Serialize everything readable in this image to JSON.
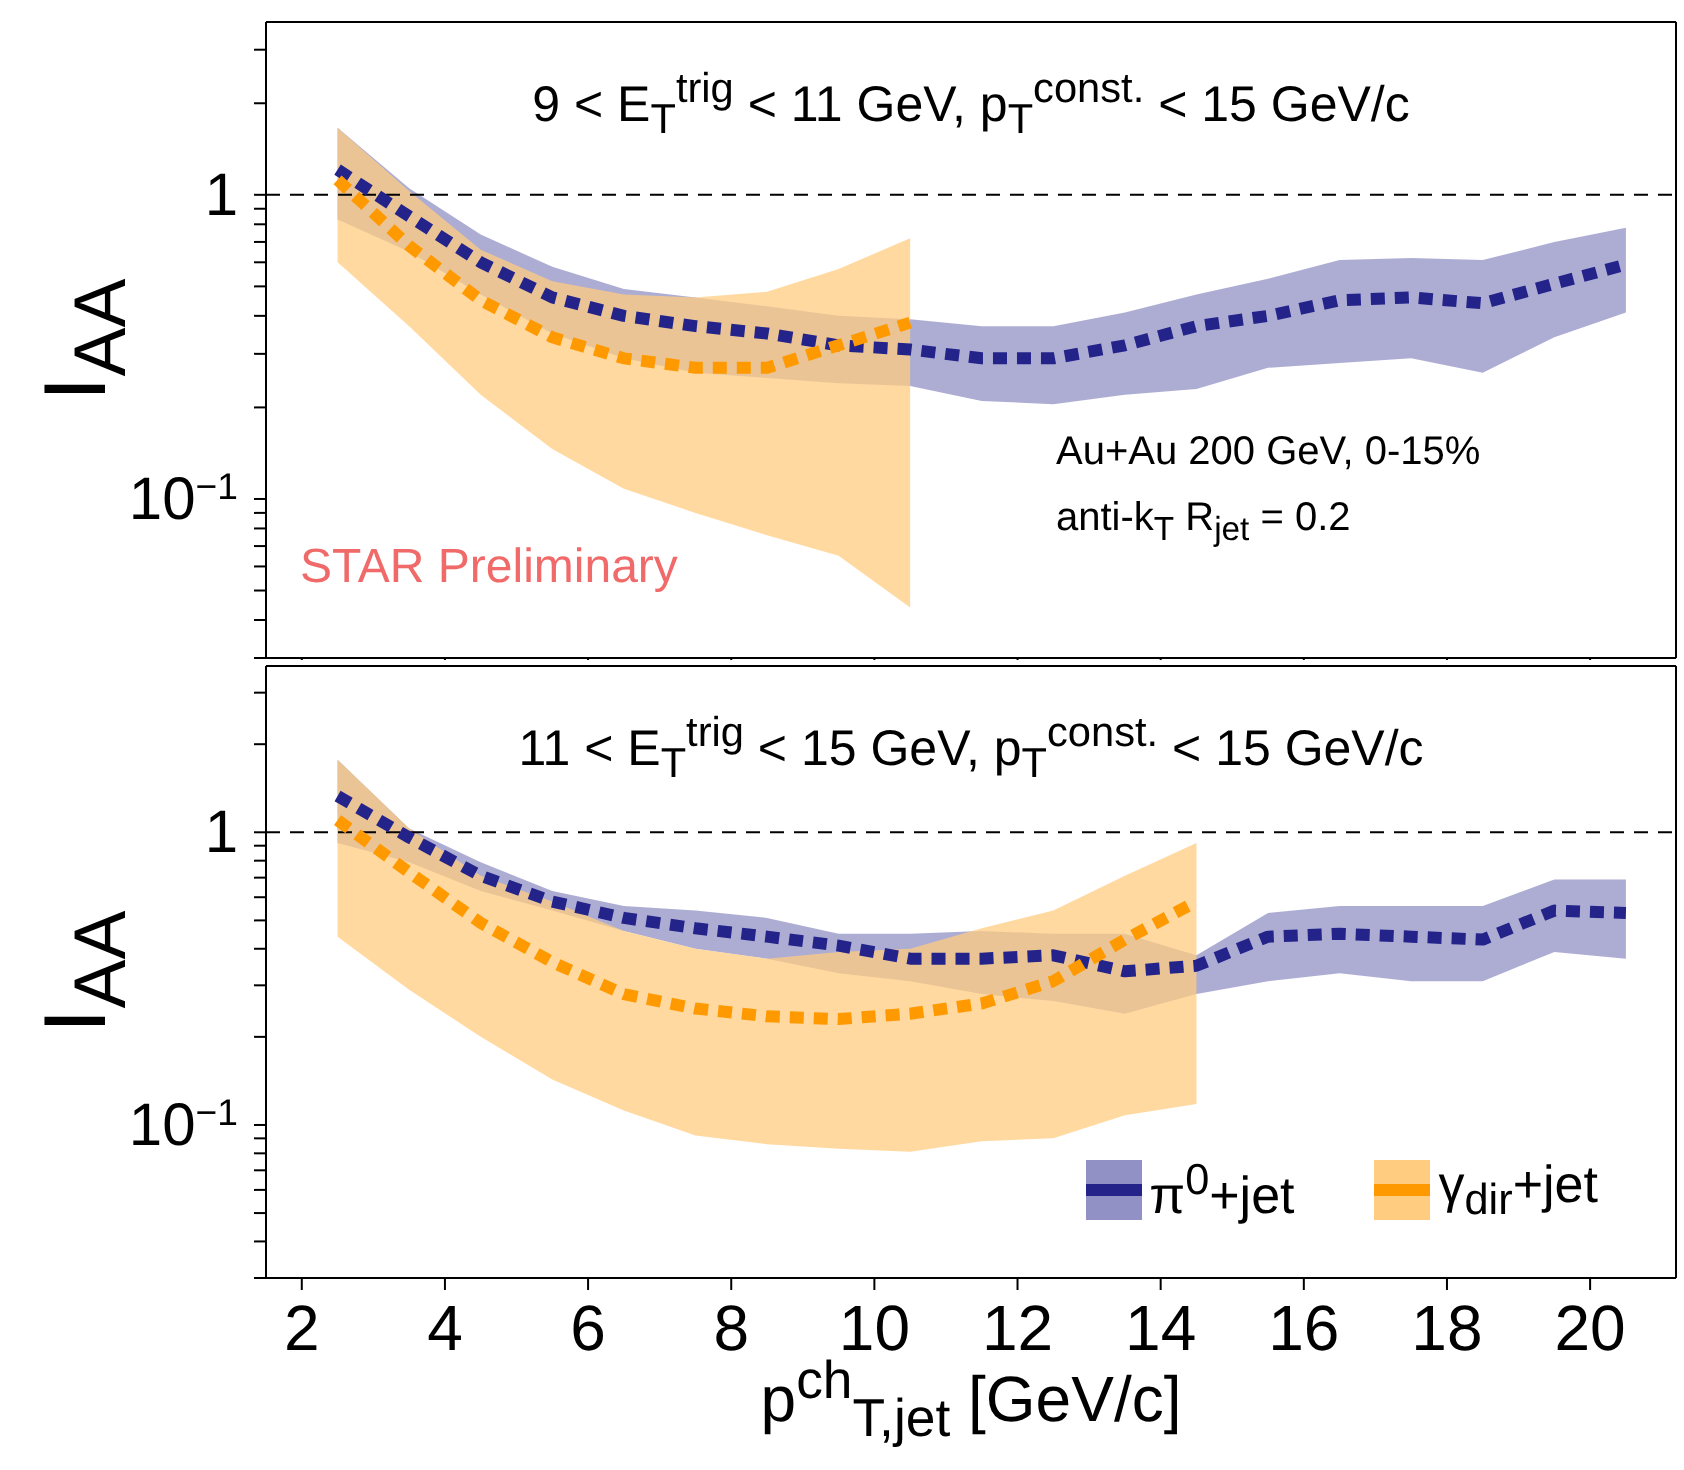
{
  "chart_data": [
    {
      "type": "line",
      "title": "9 < E$_{T}$$^{trig}$ < 11 GeV, p$_{T}$$^{const.}$ < 15 GeV/c",
      "ylabel": "I$_{AA}$",
      "log": "y",
      "tick_labels": "y",
      "line_style": "dashed",
      "xlim": [
        1.5,
        21.2
      ],
      "xticks": [
        2,
        4,
        6,
        8,
        10,
        12,
        14,
        16,
        18,
        20
      ],
      "ylim": [
        0.03,
        3.7
      ],
      "yticks": [
        {
          "value": 0.03,
          "label": null
        },
        {
          "value": 0.04,
          "label": null
        },
        {
          "value": 0.05,
          "label": null
        },
        {
          "value": 0.06,
          "label": null
        },
        {
          "value": 0.07,
          "label": null
        },
        {
          "value": 0.08,
          "label": null
        },
        {
          "value": 0.09,
          "label": null
        },
        {
          "value": 0.1,
          "label": "10$^{−1}$"
        },
        {
          "value": 0.2,
          "label": null
        },
        {
          "value": 0.3,
          "label": null
        },
        {
          "value": 0.4,
          "label": null
        },
        {
          "value": 0.5,
          "label": null
        },
        {
          "value": 0.6,
          "label": null
        },
        {
          "value": 0.7,
          "label": null
        },
        {
          "value": 0.8,
          "label": null
        },
        {
          "value": 0.9,
          "label": null
        },
        1,
        {
          "value": 2,
          "label": null
        },
        {
          "value": 3,
          "label": null
        }
      ],
      "ref_lines": [
        {
          "axis": "y",
          "value": 1,
          "color": "#000000",
          "line_style": "dashed"
        }
      ],
      "annotations": [
        "Au+Au 200 GeV, 0-15%",
        "anti-k$_{T}$ R$_{jet}$ = 0.2",
        "STAR Preliminary"
      ],
      "x": [
        2.5,
        3.5,
        4.5,
        5.5,
        6.5,
        7.5,
        8.5,
        9.5,
        10.5,
        11.5,
        12.5,
        13.5,
        14.5,
        15.5,
        16.5,
        17.5,
        18.5,
        19.5,
        20.5
      ],
      "series": [
        {
          "color": "#23238a",
          "values": [
            1.21,
            0.85,
            0.6,
            0.46,
            0.4,
            0.37,
            0.35,
            0.32,
            0.31,
            0.29,
            0.29,
            0.32,
            0.37,
            0.4,
            0.45,
            0.46,
            0.44,
            0.51,
            0.59
          ],
          "lower": [
            0.83,
            0.65,
            0.47,
            0.35,
            0.29,
            0.26,
            0.25,
            0.24,
            0.235,
            0.21,
            0.205,
            0.22,
            0.23,
            0.27,
            0.28,
            0.29,
            0.26,
            0.34,
            0.41
          ],
          "upper": [
            1.66,
            1.05,
            0.74,
            0.58,
            0.49,
            0.46,
            0.43,
            0.4,
            0.39,
            0.37,
            0.37,
            0.41,
            0.47,
            0.53,
            0.61,
            0.62,
            0.61,
            0.7,
            0.78
          ]
        },
        {
          "color": "#ff9900",
          "x": [
            2.5,
            3.5,
            4.5,
            5.5,
            6.5,
            7.5,
            8.5,
            9.5,
            10.5
          ],
          "values": [
            1.12,
            0.68,
            0.45,
            0.34,
            0.29,
            0.27,
            0.27,
            0.32,
            0.38
          ],
          "lower": [
            0.6,
            0.37,
            0.22,
            0.146,
            0.108,
            0.09,
            0.076,
            0.065,
            0.044
          ],
          "upper": [
            1.66,
            1.03,
            0.66,
            0.52,
            0.47,
            0.46,
            0.48,
            0.57,
            0.72
          ]
        }
      ]
    },
    {
      "type": "line",
      "title": "11 < E$_{T}$$^{trig}$ < 15 GeV, p$_{T}$$^{const.}$ < 15 GeV/c",
      "ylabel": "I$_{AA}$",
      "xlabel": "p$^{ch}$$_{T,jet}$ [GeV/c]",
      "log": "y",
      "line_style": "dashed",
      "legend": "bottom right",
      "xlim": [
        1.5,
        21.2
      ],
      "xticks": [
        2,
        4,
        6,
        8,
        10,
        12,
        14,
        16,
        18,
        20
      ],
      "ylim": [
        0.03,
        3.7
      ],
      "yticks": [
        {
          "value": 0.03,
          "label": null
        },
        {
          "value": 0.04,
          "label": null
        },
        {
          "value": 0.05,
          "label": null
        },
        {
          "value": 0.06,
          "label": null
        },
        {
          "value": 0.07,
          "label": null
        },
        {
          "value": 0.08,
          "label": null
        },
        {
          "value": 0.09,
          "label": null
        },
        {
          "value": 0.1,
          "label": "10$^{−1}$"
        },
        {
          "value": 0.2,
          "label": null
        },
        {
          "value": 0.3,
          "label": null
        },
        {
          "value": 0.4,
          "label": null
        },
        {
          "value": 0.5,
          "label": null
        },
        {
          "value": 0.6,
          "label": null
        },
        {
          "value": 0.7,
          "label": null
        },
        {
          "value": 0.8,
          "label": null
        },
        {
          "value": 0.9,
          "label": null
        },
        1,
        {
          "value": 2,
          "label": null
        },
        {
          "value": 3,
          "label": null
        }
      ],
      "ref_lines": [
        {
          "axis": "y",
          "value": 1,
          "color": "#000000",
          "line_style": "dashed"
        }
      ],
      "x": [
        2.5,
        3.5,
        4.5,
        5.5,
        6.5,
        7.5,
        8.5,
        9.5,
        10.5,
        11.5,
        12.5,
        13.5,
        14.5,
        15.5,
        16.5,
        17.5,
        18.5,
        19.5,
        20.5
      ],
      "series": [
        {
          "name": "π$^{0}$+jet",
          "color": "#23238a",
          "values": [
            1.33,
            0.96,
            0.71,
            0.58,
            0.51,
            0.47,
            0.44,
            0.41,
            0.37,
            0.37,
            0.38,
            0.335,
            0.35,
            0.44,
            0.45,
            0.44,
            0.43,
            0.54,
            0.53
          ],
          "lower": [
            0.92,
            0.79,
            0.63,
            0.54,
            0.46,
            0.4,
            0.37,
            0.33,
            0.31,
            0.28,
            0.265,
            0.24,
            0.28,
            0.31,
            0.33,
            0.31,
            0.31,
            0.39,
            0.37
          ],
          "upper": [
            1.77,
            1.03,
            0.79,
            0.63,
            0.56,
            0.54,
            0.51,
            0.45,
            0.45,
            0.46,
            0.45,
            0.45,
            0.38,
            0.53,
            0.56,
            0.56,
            0.56,
            0.69,
            0.69
          ]
        },
        {
          "name": "γ$_{dir}$+jet",
          "color": "#ff9900",
          "x": [
            2.5,
            3.5,
            4.5,
            5.5,
            6.5,
            7.5,
            8.5,
            9.5,
            10.5,
            11.5,
            12.5,
            13.5,
            14.5
          ],
          "values": [
            1.1,
            0.73,
            0.49,
            0.36,
            0.28,
            0.25,
            0.235,
            0.23,
            0.24,
            0.26,
            0.31,
            0.43,
            0.58
          ],
          "lower": [
            0.44,
            0.29,
            0.2,
            0.143,
            0.112,
            0.092,
            0.086,
            0.083,
            0.081,
            0.088,
            0.09,
            0.108,
            0.118
          ],
          "upper": [
            1.77,
            1.03,
            0.71,
            0.58,
            0.46,
            0.4,
            0.37,
            0.39,
            0.4,
            0.47,
            0.54,
            0.71,
            0.92
          ]
        }
      ]
    }
  ]
}
